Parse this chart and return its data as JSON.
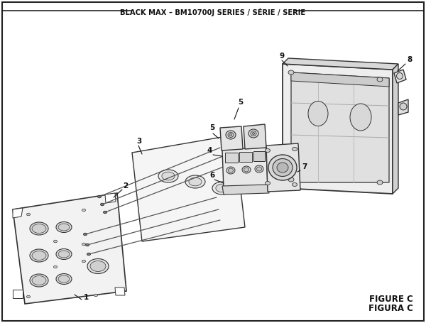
{
  "title": "BLACK MAX – BM10700J SERIES / SÉRIE / SERIE",
  "figure_label": "FIGURE C",
  "figura_label": "FIGURA C",
  "bg_color": "#ffffff",
  "border_color": "#222222",
  "line_color": "#111111",
  "part_outline": "#333333",
  "part_fill": "#f0f0f0",
  "part_mid": "#e0e0e0",
  "part_dark": "#c8c8c8"
}
